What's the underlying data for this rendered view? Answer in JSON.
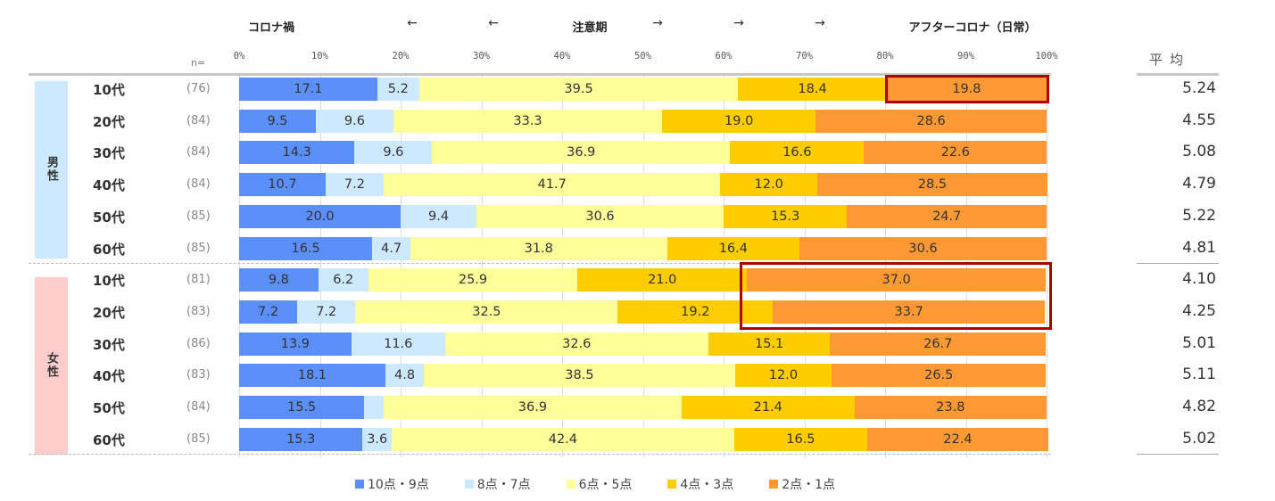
{
  "chart_data": {
    "type": "bar",
    "orientation": "horizontal-stacked-100",
    "phase_labels": [
      "コロナ禍",
      "←",
      "←",
      "注意期",
      "→",
      "→",
      "→",
      "アフターコロナ（日常）"
    ],
    "x_ticks": [
      "0%",
      "10%",
      "20%",
      "30%",
      "40%",
      "50%",
      "60%",
      "70%",
      "80%",
      "90%",
      "100%"
    ],
    "xlim": [
      0,
      100
    ],
    "n_header": "n=",
    "avg_header": "平均",
    "legend_placement": "bottom",
    "series": [
      {
        "name": "10点・9点",
        "color": "#5b8ff9"
      },
      {
        "name": "8点・7点",
        "color": "#cce9ff"
      },
      {
        "name": "6点・5点",
        "color": "#ffff99"
      },
      {
        "name": "4点・3点",
        "color": "#ffcc00"
      },
      {
        "name": "2点・1点",
        "color": "#ff9933"
      }
    ],
    "groups": [
      {
        "label": "男性",
        "color": "#cce9ff",
        "rows": [
          {
            "age": "10代",
            "n": "(76)",
            "values": [
              17.1,
              5.2,
              39.5,
              18.4,
              19.8
            ],
            "labels": [
              "17.1",
              "5.2",
              "39.5",
              "18.4",
              "19.8"
            ],
            "avg": "5.24",
            "highlight": [
              4
            ]
          },
          {
            "age": "20代",
            "n": "(84)",
            "values": [
              9.5,
              9.6,
              33.3,
              19.0,
              28.6
            ],
            "labels": [
              "9.5",
              "9.6",
              "33.3",
              "19.0",
              "28.6"
            ],
            "avg": "4.55",
            "highlight": []
          },
          {
            "age": "30代",
            "n": "(84)",
            "values": [
              14.3,
              9.6,
              36.9,
              16.6,
              22.6
            ],
            "labels": [
              "14.3",
              "9.6",
              "36.9",
              "16.6",
              "22.6"
            ],
            "avg": "5.08",
            "highlight": []
          },
          {
            "age": "40代",
            "n": "(84)",
            "values": [
              10.7,
              7.2,
              41.7,
              12.0,
              28.5
            ],
            "labels": [
              "10.7",
              "7.2",
              "41.7",
              "12.0",
              "28.5"
            ],
            "avg": "4.79",
            "highlight": []
          },
          {
            "age": "50代",
            "n": "(85)",
            "values": [
              20.0,
              9.4,
              30.6,
              15.3,
              24.7
            ],
            "labels": [
              "20.0",
              "9.4",
              "30.6",
              "15.3",
              "24.7"
            ],
            "avg": "5.22",
            "highlight": []
          },
          {
            "age": "60代",
            "n": "(85)",
            "values": [
              16.5,
              4.7,
              31.8,
              16.4,
              30.6
            ],
            "labels": [
              "16.5",
              "4.7",
              "31.8",
              "16.4",
              "30.6"
            ],
            "avg": "4.81",
            "highlight": []
          }
        ]
      },
      {
        "label": "女性",
        "color": "#ffcccc",
        "rows": [
          {
            "age": "10代",
            "n": "(81)",
            "values": [
              9.8,
              6.2,
              25.9,
              21.0,
              37.0
            ],
            "labels": [
              "9.8",
              "6.2",
              "25.9",
              "21.0",
              "37.0"
            ],
            "avg": "4.10",
            "highlight": [
              4
            ]
          },
          {
            "age": "20代",
            "n": "(83)",
            "values": [
              7.2,
              7.2,
              32.5,
              19.2,
              33.7
            ],
            "labels": [
              "7.2",
              "7.2",
              "32.5",
              "19.2",
              "33.7"
            ],
            "avg": "4.25",
            "highlight": [
              4
            ]
          },
          {
            "age": "30代",
            "n": "(86)",
            "values": [
              13.9,
              11.6,
              32.6,
              15.1,
              26.7
            ],
            "labels": [
              "13.9",
              "11.6",
              "32.6",
              "15.1",
              "26.7"
            ],
            "avg": "5.01",
            "highlight": []
          },
          {
            "age": "40代",
            "n": "(83)",
            "values": [
              18.1,
              4.8,
              38.5,
              12.0,
              26.5
            ],
            "labels": [
              "18.1",
              "4.8",
              "38.5",
              "12.0",
              "26.5"
            ],
            "avg": "5.11",
            "highlight": []
          },
          {
            "age": "50代",
            "n": "(84)",
            "values": [
              15.5,
              2.4,
              36.9,
              21.4,
              23.8
            ],
            "labels": [
              "15.5",
              "",
              "36.9",
              "21.4",
              "23.8"
            ],
            "avg": "4.82",
            "highlight": []
          },
          {
            "age": "60代",
            "n": "(85)",
            "values": [
              15.3,
              3.6,
              42.4,
              16.5,
              22.4
            ],
            "labels": [
              "15.3",
              "3.6",
              "42.4",
              "16.5",
              "22.4"
            ],
            "avg": "5.02",
            "highlight": []
          }
        ]
      }
    ],
    "highlight_color": "#b00000"
  }
}
